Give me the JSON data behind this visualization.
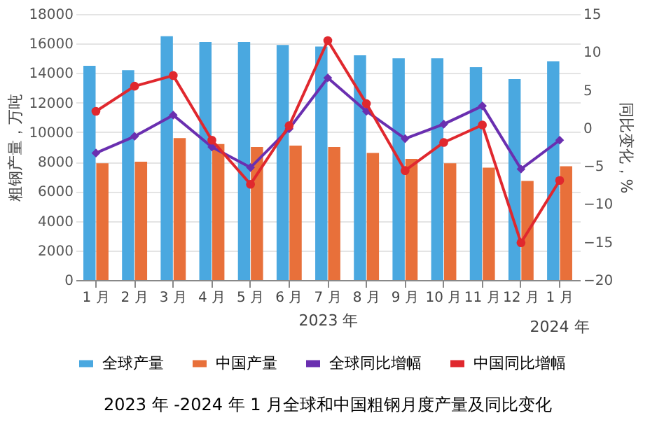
{
  "chart_data": {
    "type": "bar",
    "title": "2023 年 -2024 年 1 月全球和中国粗钢月度产量及同比变化",
    "xlabel": "2023 年",
    "ylabel": "粗钢产量，万吨",
    "y2label": "同比变化，%",
    "annotations": [
      "2024 年"
    ],
    "categories": [
      "1 月",
      "2 月",
      "3 月",
      "4 月",
      "5 月",
      "6 月",
      "7 月",
      "8 月",
      "9 月",
      "10 月",
      "11 月",
      "12 月",
      "1 月"
    ],
    "series": [
      {
        "name": "全球产量",
        "color": "#4aa8e0",
        "values": [
          14500,
          14200,
          16500,
          16100,
          16100,
          15900,
          15800,
          15200,
          15000,
          15000,
          14400,
          13600,
          14800
        ]
      },
      {
        "name": "中国产量",
        "color": "#e8703a",
        "values": [
          7900,
          8000,
          9600,
          9200,
          9000,
          9100,
          9000,
          8600,
          8200,
          7900,
          7600,
          6700,
          7700
        ]
      },
      {
        "name": "全球同比增幅",
        "type": "line",
        "axis": "y2",
        "color": "#6a2fb0",
        "marker": "diamond",
        "values": [
          -3.3,
          -1.1,
          1.7,
          -2.5,
          -5.2,
          -0.1,
          6.6,
          2.2,
          -1.4,
          0.5,
          2.9,
          -5.4,
          -1.6
        ]
      },
      {
        "name": "中国同比增幅",
        "type": "line",
        "axis": "y2",
        "color": "#e0282e",
        "marker": "circle",
        "values": [
          2.2,
          5.5,
          6.9,
          -1.6,
          -7.4,
          0.3,
          11.5,
          3.2,
          -5.6,
          -1.9,
          0.4,
          -15.1,
          -6.9
        ]
      }
    ],
    "ylim": [
      0,
      18000
    ],
    "yticks": [
      0,
      2000,
      4000,
      6000,
      8000,
      10000,
      12000,
      14000,
      16000,
      18000
    ],
    "y2lim": [
      -20,
      15
    ],
    "y2ticks": [
      -20,
      -15,
      -10,
      -5,
      0,
      5,
      10,
      15
    ],
    "grid": "y",
    "legend": "bottom"
  }
}
